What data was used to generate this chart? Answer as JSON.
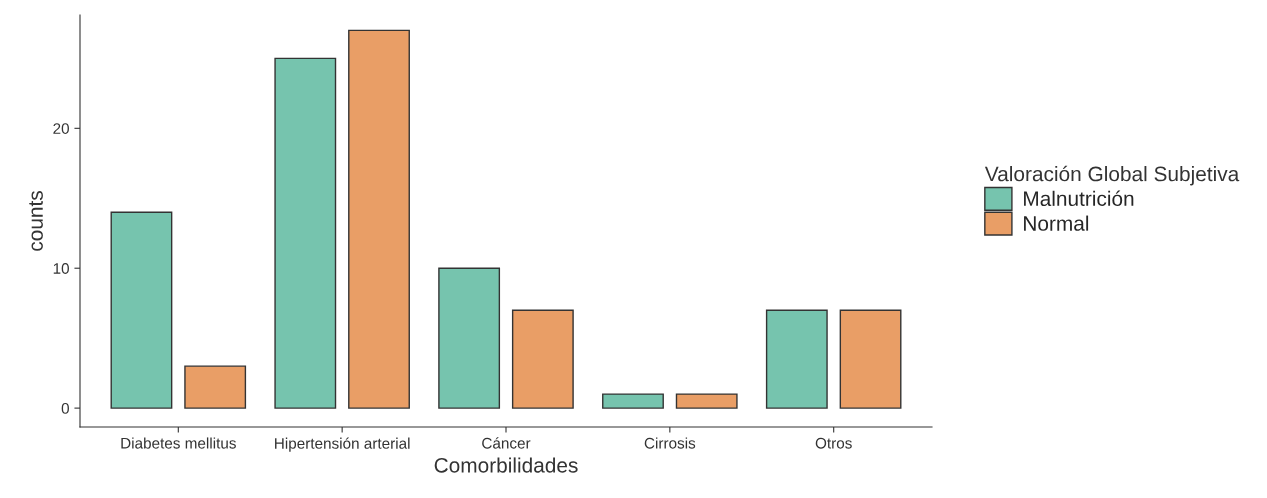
{
  "chart_data": {
    "type": "bar",
    "xlabel": "Comorbilidades",
    "ylabel": "counts",
    "legend_title": "Valoración Global Subjetiva",
    "categories": [
      "Diabetes mellitus",
      "Hipertensión arterial",
      "Cáncer",
      "Cirrosis",
      "Otros"
    ],
    "series": [
      {
        "name": "Malnutrición",
        "color": "#76c4ae",
        "values": [
          14,
          25,
          10,
          1,
          7
        ]
      },
      {
        "name": "Normal",
        "color": "#e99e66",
        "values": [
          3,
          27,
          7,
          1,
          7
        ]
      }
    ],
    "ylim": [
      -1.35,
      28.1
    ],
    "yticks": [
      0,
      10,
      20
    ],
    "grid": false,
    "legend": "right"
  }
}
